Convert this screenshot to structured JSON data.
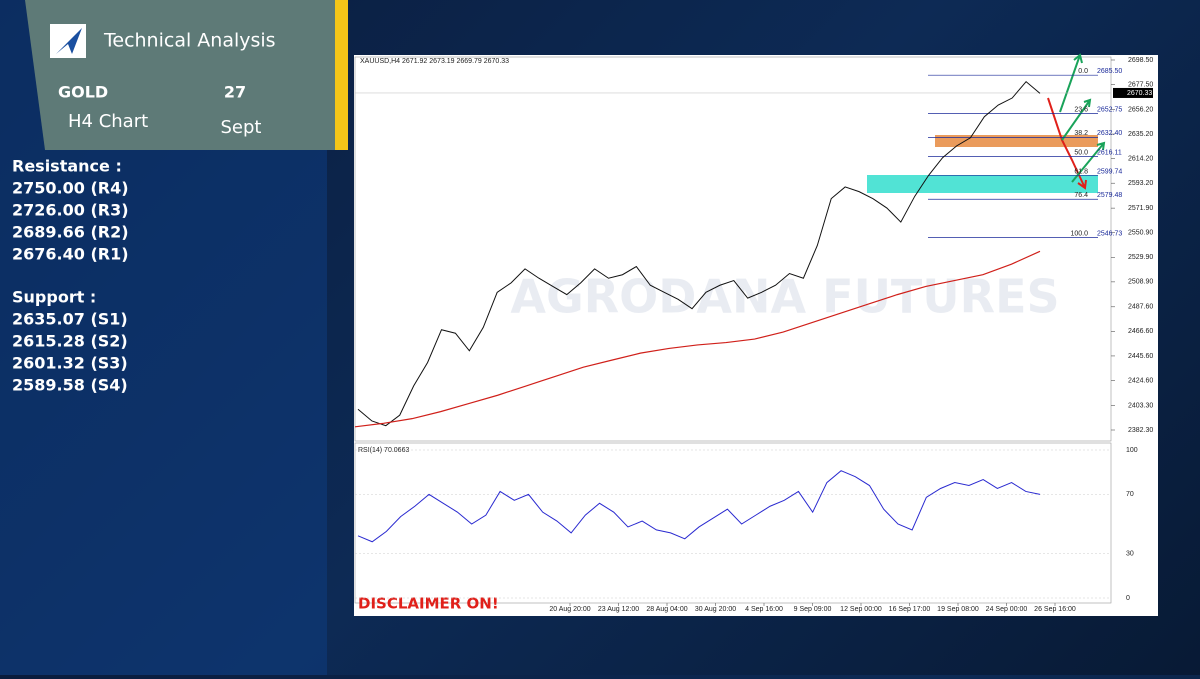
{
  "header": {
    "brand": "Technical Analysis",
    "symbol": "GOLD",
    "timeframe": "H4 Chart",
    "day": "27",
    "month": "Sept"
  },
  "resistance": {
    "title": "Resistance :",
    "levels": [
      "2750.00  (R4)",
      "2726.00  (R3)",
      "2689.66 (R2)",
      "2676.40  (R1)"
    ]
  },
  "support": {
    "title": "Support :",
    "levels": [
      "2635.07 (S1)",
      "2615.28 (S2)",
      "2601.32 (S3)",
      "2589.58 (S4)"
    ]
  },
  "chart": {
    "symbol_line": "XAUUSD,H4  2671.92 2673.19 2669.79 2670.33",
    "current_price": {
      "value": 2670.33,
      "label": "2670.33"
    },
    "ylim": [
      2382.3,
      2698.5
    ],
    "yticks": [
      {
        "value": 2698.5,
        "label": "2698.50"
      },
      {
        "value": 2677.5,
        "label": "2677.50"
      },
      {
        "value": 2656.2,
        "label": "2656.20"
      },
      {
        "value": 2635.2,
        "label": "2635.20"
      },
      {
        "value": 2614.2,
        "label": "2614.20"
      },
      {
        "value": 2593.2,
        "label": "2593.20"
      },
      {
        "value": 2571.9,
        "label": "2571.90"
      },
      {
        "value": 2550.9,
        "label": "2550.90"
      },
      {
        "value": 2529.9,
        "label": "2529.90"
      },
      {
        "value": 2508.9,
        "label": "2508.90"
      },
      {
        "value": 2487.6,
        "label": "2487.60"
      },
      {
        "value": 2466.6,
        "label": "2466.60"
      },
      {
        "value": 2445.6,
        "label": "2445.60"
      },
      {
        "value": 2424.6,
        "label": "2424.60"
      },
      {
        "value": 2403.3,
        "label": "2403.30"
      },
      {
        "value": 2382.3,
        "label": "2382.30"
      }
    ],
    "xticks": [
      "20 Aug 20:00",
      "23 Aug 12:00",
      "28 Aug 04:00",
      "30 Aug 20:00",
      "4 Sep 16:00",
      "9 Sep 09:00",
      "12 Sep 00:00",
      "16 Sep 17:00",
      "19 Sep 08:00",
      "24 Sep 00:00",
      "26 Sep 16:00"
    ],
    "price": [
      2400,
      2390,
      2386,
      2395,
      2420,
      2440,
      2468,
      2465,
      2450,
      2470,
      2500,
      2508,
      2520,
      2512,
      2505,
      2498,
      2508,
      2520,
      2512,
      2515,
      2522,
      2506,
      2500,
      2494,
      2486,
      2500,
      2506,
      2510,
      2495,
      2500,
      2506,
      2516,
      2512,
      2540,
      2580,
      2590,
      2586,
      2580,
      2572,
      2560,
      2582,
      2600,
      2615,
      2625,
      2632,
      2650,
      2660,
      2666,
      2680,
      2670
    ],
    "moving_average": [
      2385,
      2388,
      2392,
      2398,
      2405,
      2412,
      2420,
      2428,
      2436,
      2442,
      2448,
      2452,
      2455,
      2457,
      2460,
      2466,
      2474,
      2482,
      2490,
      2498,
      2505,
      2510,
      2515,
      2524,
      2535
    ],
    "fibonacci": [
      {
        "level": "0.0",
        "price": {
          "value": 2685.5,
          "label": "2685.50"
        }
      },
      {
        "level": "23.6",
        "price": 2652.75
      },
      {
        "level": "38.2",
        "price": {
          "value": 2632.4,
          "label": "2632.40"
        }
      },
      {
        "level": "50.0",
        "price": 2616.11
      },
      {
        "level": "61.8",
        "price": 2599.74
      },
      {
        "level": "76.4",
        "price": 2579.48
      },
      {
        "level": "100.0",
        "price": 2546.73
      }
    ],
    "rsi": {
      "label": "RSI(14) 70.0663",
      "ylim": [
        0,
        100
      ],
      "yticks": [
        100,
        70,
        30,
        0
      ],
      "values": [
        42,
        38,
        45,
        55,
        62,
        70,
        64,
        58,
        50,
        56,
        72,
        66,
        70,
        58,
        52,
        44,
        56,
        64,
        58,
        48,
        52,
        46,
        44,
        40,
        48,
        54,
        60,
        50,
        56,
        62,
        66,
        72,
        58,
        78,
        86,
        82,
        76,
        60,
        50,
        46,
        68,
        74,
        78,
        76,
        80,
        74,
        78,
        72,
        70
      ]
    },
    "watermark": "AGRODANA FUTURES",
    "disclaimer": "DISCLAIMER ON!"
  }
}
